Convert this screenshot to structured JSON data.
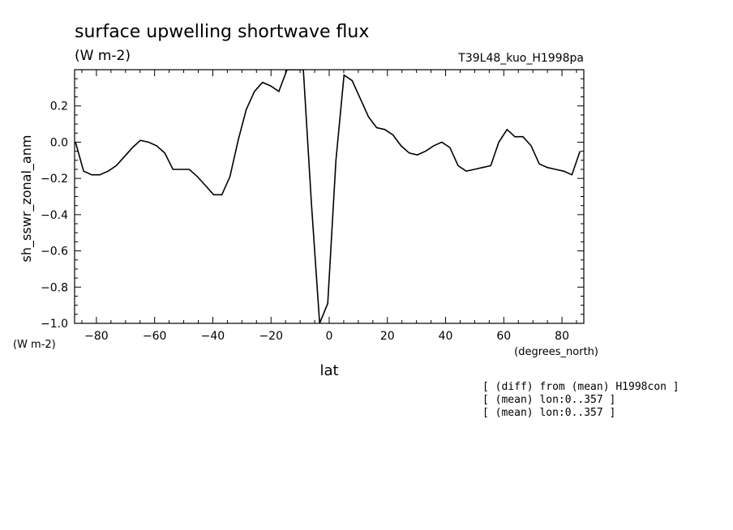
{
  "chart_data": {
    "type": "line",
    "title": "surface upwelling shortwave flux",
    "units": "(W m-2)",
    "run_label": "T39L48_kuo_H1998pa",
    "ylabel": "sh_sswr_zonal_anm",
    "ylabel_units": "(W m-2)",
    "xlabel": "lat",
    "xlabel_units": "(degrees_north)",
    "xlim": [
      -87.5,
      87.5
    ],
    "ylim": [
      -1.0,
      0.4
    ],
    "x_ticks": [
      -80,
      -60,
      -40,
      -20,
      0,
      20,
      40,
      60,
      80
    ],
    "y_ticks": [
      -1.0,
      -0.8,
      -0.6,
      -0.4,
      -0.2,
      0.0,
      0.2
    ],
    "y_tick_labels": [
      "−1.0",
      "−0.8",
      "−0.6",
      "−0.4",
      "−0.2",
      "0.0",
      "0.2"
    ],
    "x_tick_labels": [
      "−80",
      "−60",
      "−40",
      "−20",
      "0",
      "20",
      "40",
      "60",
      "80"
    ],
    "grid": false,
    "series": [
      {
        "x": [
          -87.2,
          -84.4,
          -81.6,
          -78.8,
          -76.0,
          -73.2,
          -70.4,
          -67.6,
          -64.9,
          -62.1,
          -59.3,
          -56.5,
          -53.7,
          -50.9,
          -48.1,
          -45.3,
          -42.5,
          -39.7,
          -36.9,
          -34.1,
          -31.3,
          -28.5,
          -25.7,
          -22.9,
          -20.1,
          -17.3,
          -14.5,
          -11.7,
          -8.9,
          -6.1,
          -3.3,
          -0.5,
          2.3,
          5.1,
          7.9,
          10.7,
          13.5,
          16.3,
          19.1,
          21.9,
          24.7,
          27.5,
          30.3,
          33.1,
          35.9,
          38.7,
          41.5,
          44.3,
          47.1,
          49.9,
          52.7,
          55.5,
          58.3,
          61.1,
          63.8,
          66.6,
          69.4,
          72.2,
          75.0,
          77.8,
          80.6,
          83.4,
          86.2
        ],
        "y": [
          0.0,
          -0.16,
          -0.18,
          -0.18,
          -0.16,
          -0.13,
          -0.08,
          -0.03,
          0.01,
          0.0,
          -0.02,
          -0.06,
          -0.15,
          -0.15,
          -0.15,
          -0.19,
          -0.24,
          -0.29,
          -0.29,
          -0.19,
          0.01,
          0.18,
          0.28,
          0.33,
          0.31,
          0.28,
          0.4,
          0.4,
          0.4,
          -0.34,
          -1.0,
          -0.89,
          -0.1,
          0.37,
          0.34,
          0.24,
          0.14,
          0.08,
          0.07,
          0.04,
          -0.02,
          -0.06,
          -0.07,
          -0.05,
          -0.02,
          0.0,
          -0.03,
          -0.13,
          -0.16,
          -0.15,
          -0.14,
          -0.13,
          0.0,
          0.07,
          0.03,
          0.03,
          -0.02,
          -0.12,
          -0.14,
          -0.15,
          -0.16,
          -0.18,
          -0.05
        ]
      }
    ],
    "notes": [
      "[ (diff) from (mean) H1998con ]",
      "[ (mean) lon:0..357 ]",
      "[ (mean) lon:0..357 ]"
    ]
  }
}
